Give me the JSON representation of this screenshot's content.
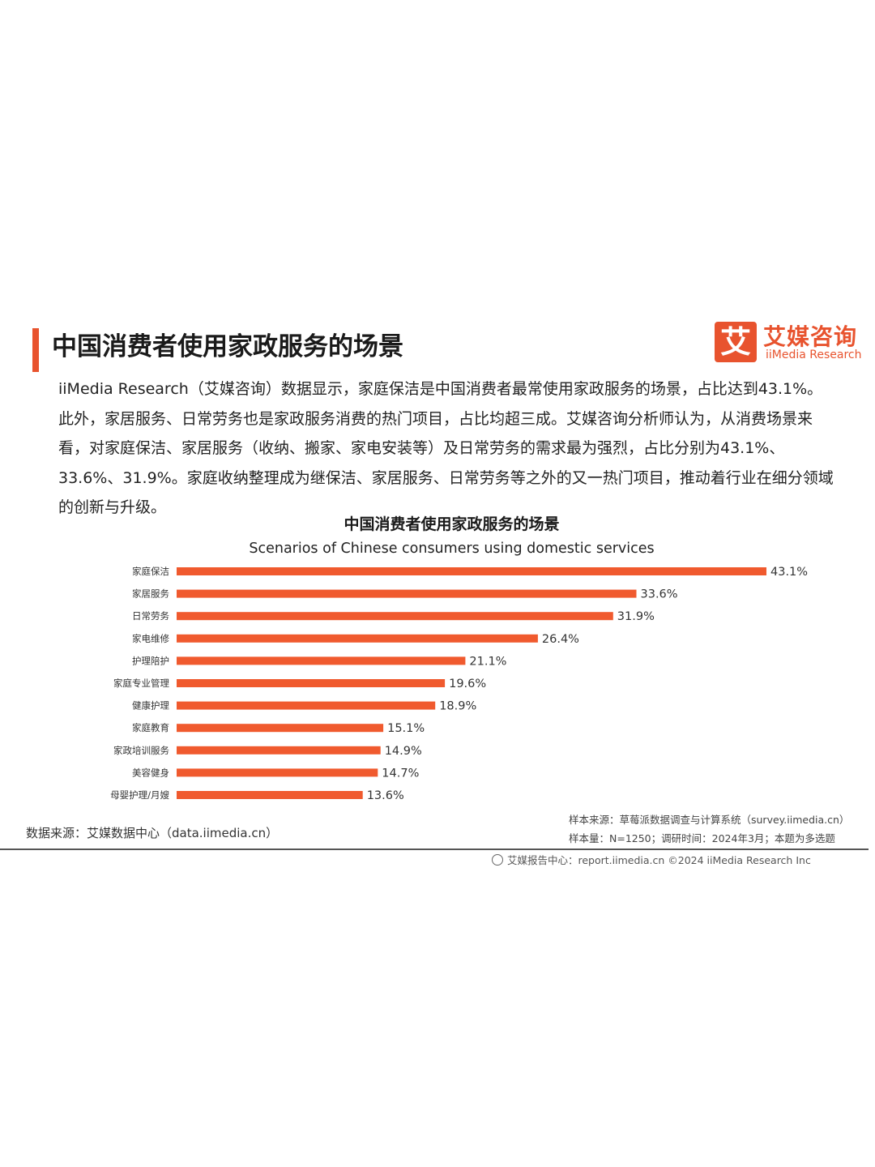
{
  "page_title": "中国消费者使用家政服务的场景",
  "logo": {
    "mark": "艾",
    "name_cn": "艾媒咨询",
    "name_en": "iiMedia Research"
  },
  "intro": "iiMedia Research（艾媒咨询）数据显示，家庭保洁是中国消费者最常使用家政服务的场景，占比达到43.1%。此外，家居服务、日常劳务也是家政服务消费的热门项目，占比均超三成。艾媒咨询分析师认为，从消费场景来看，对家庭保洁、家居服务（收纳、搬家、家电安装等）及日常劳务的需求最为强烈，占比分别为43.1%、33.6%、31.9%。家庭收纳整理成为继保洁、家居服务、日常劳务等之外的又一热门项目，推动着行业在细分领域的创新与升级。",
  "chart_data": {
    "type": "bar",
    "orientation": "horizontal",
    "title": "中国消费者使用家政服务的场景",
    "subtitle": "Scenarios of Chinese consumers using domestic services",
    "categories": [
      "家庭保洁",
      "家居服务",
      "日常劳务",
      "家电维修",
      "护理陪护",
      "家庭专业管理",
      "健康护理",
      "家庭教育",
      "家政培训服务",
      "美容健身",
      "母婴护理/月嫂"
    ],
    "values": [
      43.1,
      33.6,
      31.9,
      26.4,
      21.1,
      19.6,
      18.9,
      15.1,
      14.9,
      14.7,
      13.6
    ],
    "value_labels": [
      "43.1%",
      "33.6%",
      "31.9%",
      "26.4%",
      "21.1%",
      "19.6%",
      "18.9%",
      "15.1%",
      "14.9%",
      "14.7%",
      "13.6%"
    ],
    "unit": "%",
    "xlim": [
      0,
      43.1
    ],
    "bar_color": "#f05a2e",
    "grid": false,
    "legend": "none"
  },
  "source_left": "数据来源：艾媒数据中心（data.iimedia.cn）",
  "source_right_1": "样本来源：草莓派数据调查与计算系统（survey.iimedia.cn）",
  "source_right_2": "样本量：N=1250；调研时间：2024年3月；本题为多选题",
  "footer": "艾媒报告中心：report.iimedia.cn    ©2024  iiMedia Research  Inc",
  "colors": {
    "accent": "#e8532e"
  }
}
